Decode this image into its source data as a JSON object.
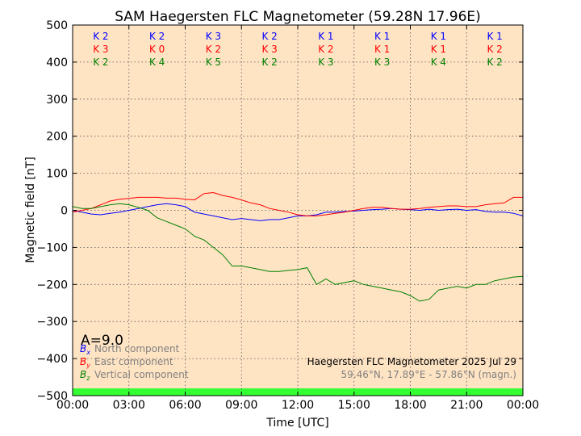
{
  "chart_data": {
    "type": "line",
    "title": "SAM Haegersten FLC Magnetometer (59.28N 17.96E)",
    "xlabel": "Time [UTC]",
    "ylabel": "Magnetic field [nT]",
    "xlim": [
      0,
      24
    ],
    "ylim": [
      -500,
      500
    ],
    "x_tick_labels": [
      "00:00",
      "03:00",
      "06:00",
      "09:00",
      "12:00",
      "15:00",
      "18:00",
      "21:00",
      "00:00"
    ],
    "y_ticks": [
      -500,
      -400,
      -300,
      -200,
      -100,
      0,
      100,
      200,
      300,
      400,
      500
    ],
    "y_tick_labels": [
      "−500",
      "−400",
      "−300",
      "−200",
      "−100",
      "0",
      "100",
      "200",
      "300",
      "400",
      "500"
    ],
    "grid": true,
    "background_color": "#ffe4c4",
    "quiet_bar_color": "#33ff33",
    "k_index": {
      "rows": [
        {
          "color": "#0000ff",
          "values": [
            "K 2",
            "K 2",
            "K 3",
            "K 2",
            "K 1",
            "K 1",
            "K 1",
            "K 1"
          ]
        },
        {
          "color": "#ff0000",
          "values": [
            "K 3",
            "K 0",
            "K 2",
            "K 3",
            "K 2",
            "K 1",
            "K 1",
            "K 2"
          ]
        },
        {
          "color": "#008000",
          "values": [
            "K 2",
            "K 4",
            "K 5",
            "K 2",
            "K 3",
            "K 3",
            "K 4",
            "K 2"
          ]
        }
      ]
    },
    "a_index": "A=9.0",
    "station_label": "Haegersten FLC Magnetometer 2025 Jul 29",
    "coords_label": "59.46°N, 17.89°E - 57.86°N (magn.)",
    "series": [
      {
        "name": "North component",
        "symbol": "B",
        "sub": "x",
        "color": "#0000ff",
        "x": [
          0,
          0.5,
          1,
          1.5,
          2,
          2.5,
          3,
          3.5,
          4,
          4.5,
          5,
          5.5,
          6,
          6.5,
          7,
          7.5,
          8,
          8.5,
          9,
          9.5,
          10,
          10.5,
          11,
          11.5,
          12,
          12.5,
          13,
          13.5,
          14,
          14.5,
          15,
          15.5,
          16,
          16.5,
          17,
          17.5,
          18,
          18.5,
          19,
          19.5,
          20,
          20.5,
          21,
          21.5,
          22,
          22.5,
          23,
          23.5,
          24
        ],
        "y": [
          0,
          -5,
          -10,
          -12,
          -8,
          -5,
          0,
          5,
          10,
          15,
          18,
          15,
          10,
          -5,
          -10,
          -15,
          -20,
          -25,
          -22,
          -25,
          -28,
          -25,
          -25,
          -20,
          -15,
          -15,
          -12,
          -5,
          -5,
          -3,
          -2,
          0,
          2,
          3,
          5,
          3,
          2,
          0,
          3,
          0,
          2,
          3,
          0,
          2,
          -3,
          -5,
          -5,
          -8,
          -15
        ]
      },
      {
        "name": "East component",
        "symbol": "B",
        "sub": "y",
        "color": "#ff0000",
        "x": [
          0,
          0.5,
          1,
          1.5,
          2,
          2.5,
          3,
          3.5,
          4,
          4.5,
          5,
          5.5,
          6,
          6.5,
          7,
          7.5,
          8,
          8.5,
          9,
          9.5,
          10,
          10.5,
          11,
          11.5,
          12,
          12.5,
          13,
          13.5,
          14,
          14.5,
          15,
          15.5,
          16,
          16.5,
          17,
          17.5,
          18,
          18.5,
          19,
          19.5,
          20,
          20.5,
          21,
          21.5,
          22,
          22.5,
          23,
          23.5,
          24
        ],
        "y": [
          -5,
          0,
          5,
          15,
          25,
          30,
          32,
          35,
          35,
          35,
          33,
          33,
          30,
          28,
          45,
          48,
          40,
          35,
          28,
          20,
          15,
          5,
          0,
          -5,
          -12,
          -15,
          -15,
          -12,
          -8,
          -5,
          0,
          5,
          8,
          8,
          5,
          3,
          3,
          5,
          8,
          10,
          12,
          12,
          10,
          10,
          15,
          18,
          20,
          35,
          35
        ]
      },
      {
        "name": "Vertical component",
        "symbol": "B",
        "sub": "z",
        "color": "#008000",
        "x": [
          0,
          0.5,
          1,
          1.5,
          2,
          2.5,
          3,
          3.5,
          4,
          4.5,
          5,
          5.5,
          6,
          6.5,
          7,
          7.5,
          8,
          8.5,
          9,
          9.5,
          10,
          10.5,
          11,
          11.5,
          12,
          12.5,
          13,
          13.5,
          14,
          14.5,
          15,
          15.5,
          16,
          16.5,
          17,
          17.5,
          18,
          18.5,
          19,
          19.5,
          20,
          20.5,
          21,
          21.5,
          22,
          22.5,
          23,
          23.5,
          24
        ],
        "y": [
          10,
          5,
          5,
          10,
          15,
          18,
          15,
          8,
          0,
          -20,
          -30,
          -40,
          -50,
          -70,
          -80,
          -100,
          -120,
          -150,
          -150,
          -155,
          -160,
          -165,
          -165,
          -162,
          -160,
          -155,
          -200,
          -185,
          -200,
          -195,
          -190,
          -200,
          -205,
          -210,
          -215,
          -220,
          -230,
          -245,
          -240,
          -215,
          -210,
          -205,
          -210,
          -200,
          -200,
          -190,
          -185,
          -180,
          -178
        ]
      }
    ]
  }
}
